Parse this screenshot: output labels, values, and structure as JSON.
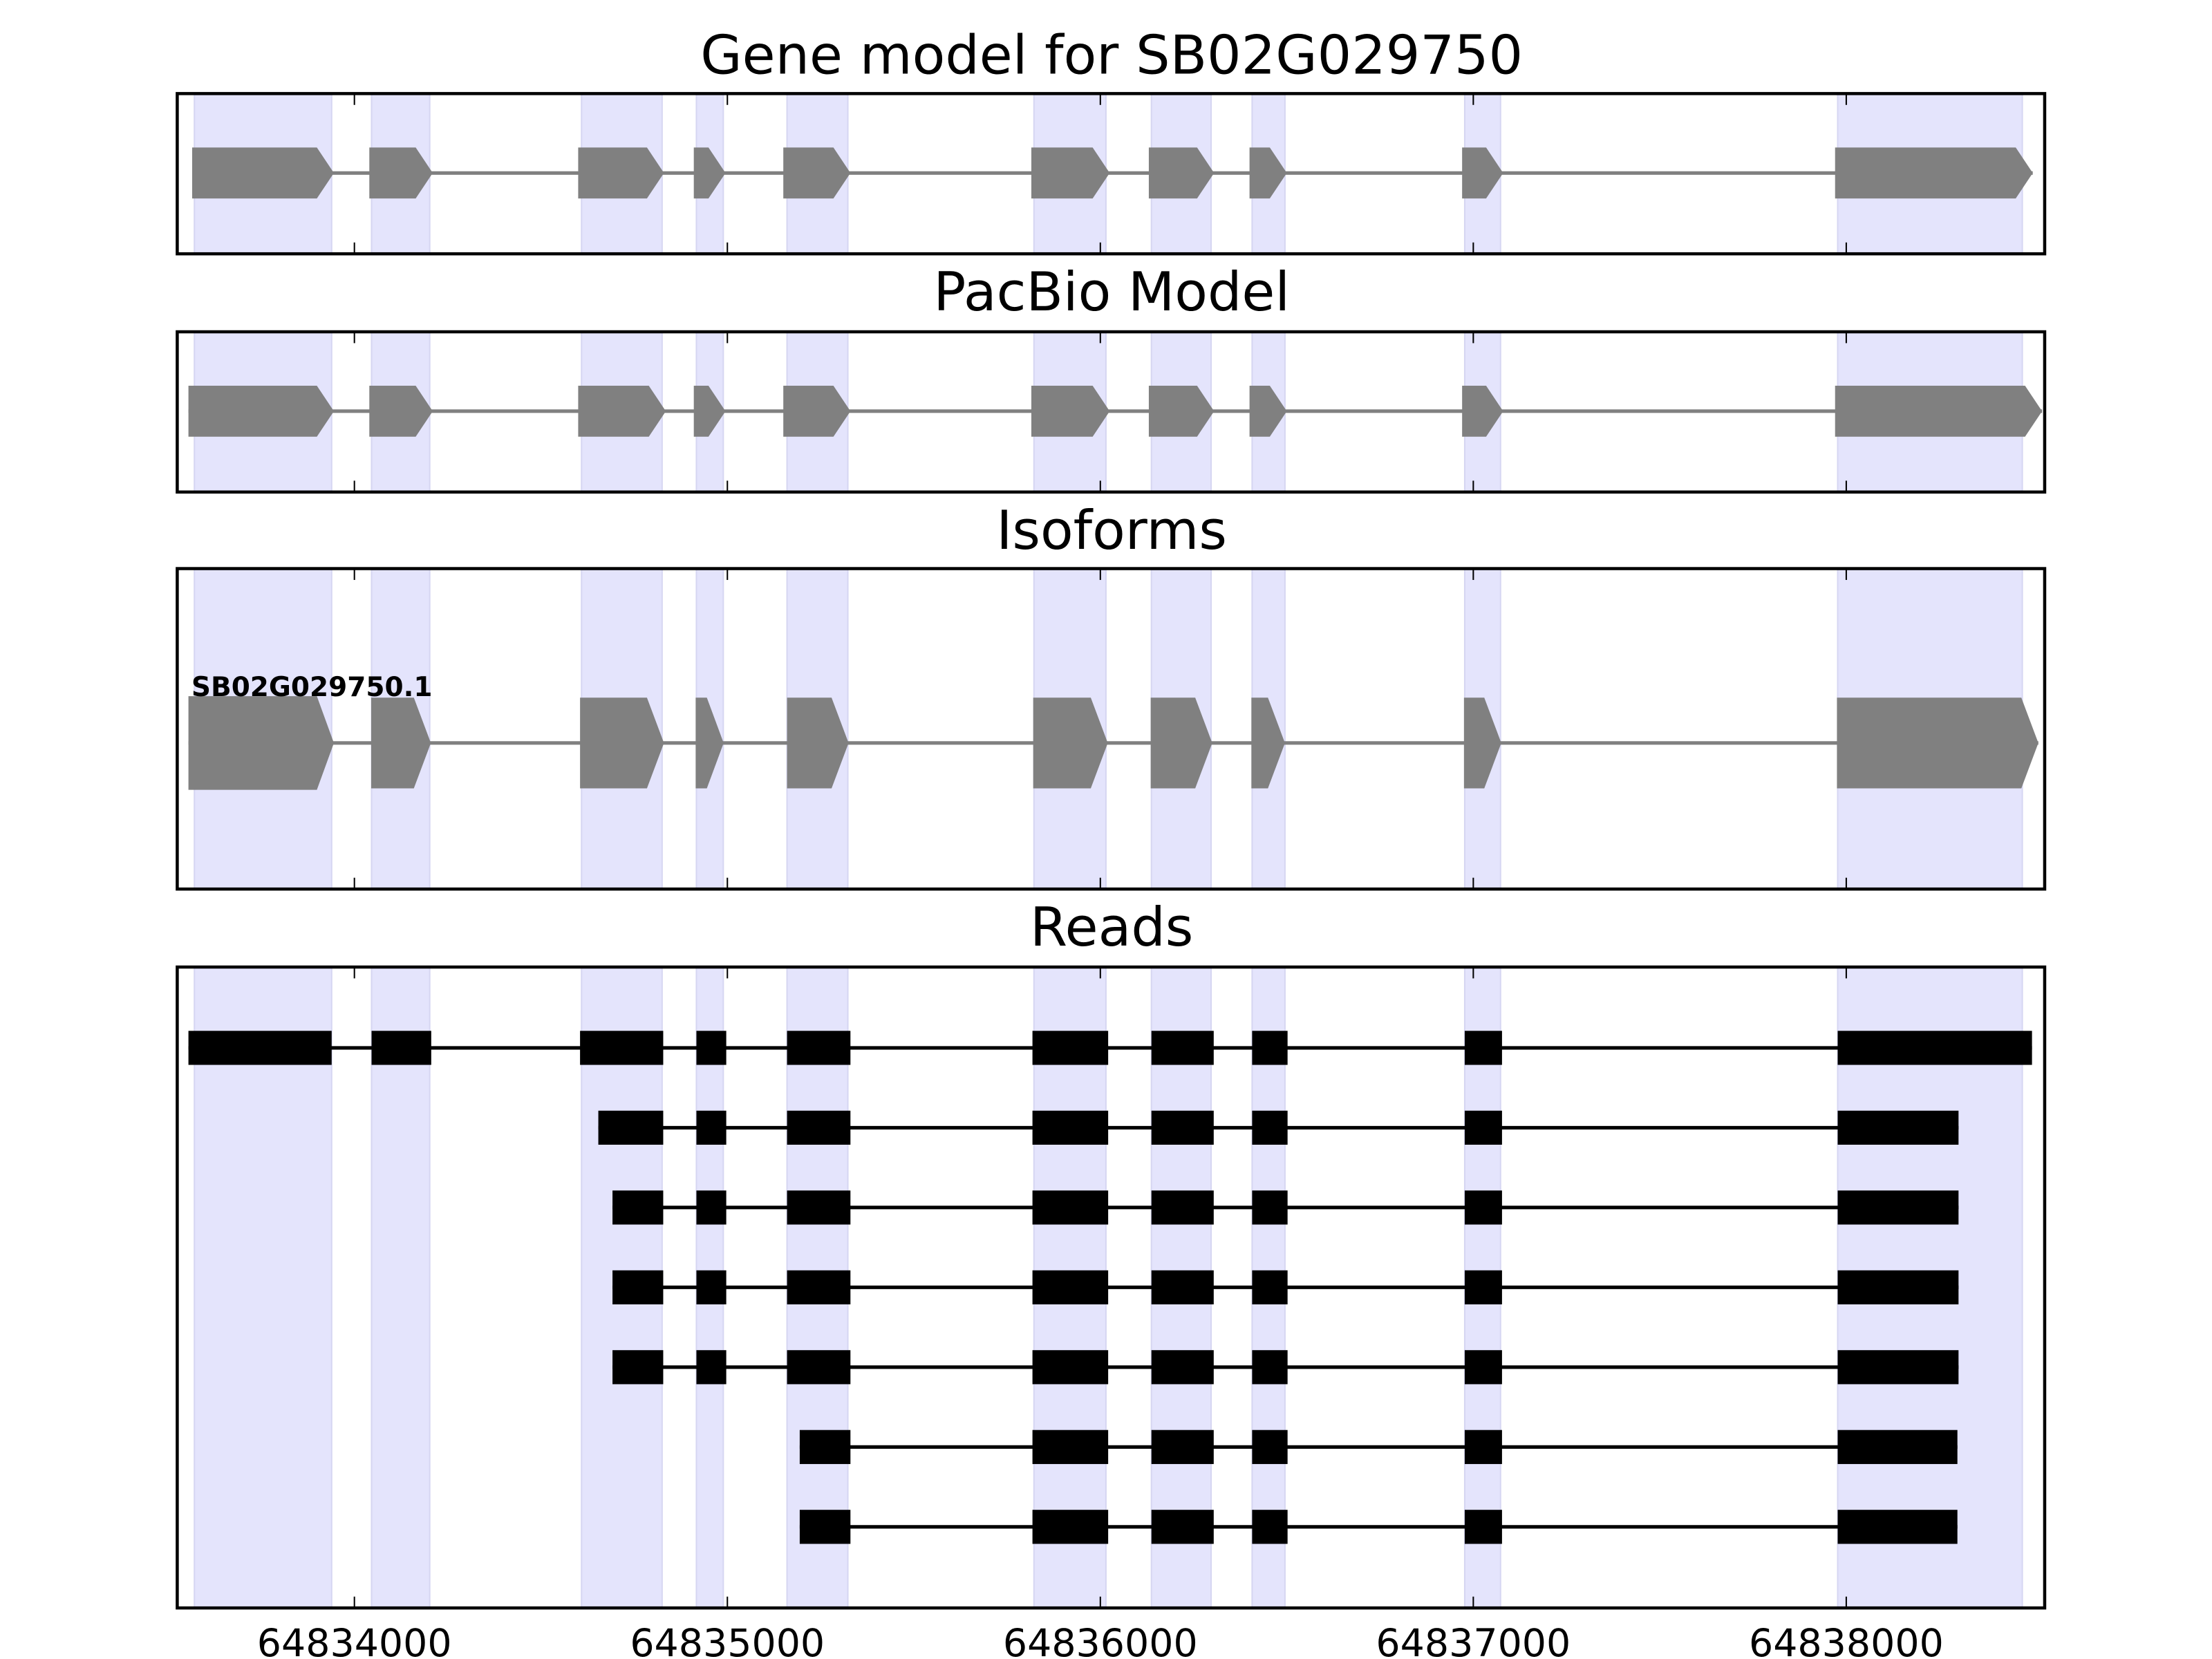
{
  "chart_data": {
    "type": "gene-track",
    "xlim": [
      64833525,
      64838532
    ],
    "x_ticks": [
      64834000,
      64835000,
      64836000,
      64837000,
      64838000
    ],
    "x_tick_labels": [
      "64834000",
      "64835000",
      "64836000",
      "64837000",
      "64838000"
    ],
    "shaded_exons": [
      [
        64833571,
        64833939
      ],
      [
        64834046,
        64834202
      ],
      [
        64834609,
        64834825
      ],
      [
        64834917,
        64834989
      ],
      [
        64835160,
        64835323
      ],
      [
        64835822,
        64836015
      ],
      [
        64836137,
        64836297
      ],
      [
        64836407,
        64836495
      ],
      [
        64836977,
        64837073
      ],
      [
        64837977,
        64838472
      ]
    ],
    "colors": {
      "shade": "#e4e4fc",
      "model": "#808080",
      "read": "#000000"
    },
    "panels": [
      {
        "title": "Gene model for SB02G029750",
        "exons": [
          [
            64833565,
            64833945
          ],
          [
            64834040,
            64834210
          ],
          [
            64834600,
            64834830
          ],
          [
            64834910,
            64834995
          ],
          [
            64835150,
            64835330
          ],
          [
            64835815,
            64836025
          ],
          [
            64836130,
            64836305
          ],
          [
            64836400,
            64836500
          ],
          [
            64836970,
            64837080
          ],
          [
            64837970,
            64838500
          ]
        ]
      },
      {
        "title": "PacBio Model",
        "exons": [
          [
            64833555,
            64833945
          ],
          [
            64834040,
            64834210
          ],
          [
            64834600,
            64834835
          ],
          [
            64834910,
            64834995
          ],
          [
            64835150,
            64835330
          ],
          [
            64835815,
            64836025
          ],
          [
            64836130,
            64836305
          ],
          [
            64836400,
            64836500
          ],
          [
            64836970,
            64837080
          ],
          [
            64837970,
            64838525
          ]
        ]
      },
      {
        "title": "Isoforms",
        "label": "SB02G029750.1",
        "exons": [
          [
            64833555,
            64833945
          ],
          [
            64834045,
            64834205
          ],
          [
            64834605,
            64834830
          ],
          [
            64834915,
            64834990
          ],
          [
            64835160,
            64835325
          ],
          [
            64835820,
            64836020
          ],
          [
            64836135,
            64836300
          ],
          [
            64836405,
            64836495
          ],
          [
            64836975,
            64837075
          ],
          [
            64837975,
            64838515
          ]
        ]
      }
    ],
    "reads_title": "Reads",
    "reads": [
      {
        "exons": [
          [
            64833555,
            64833939
          ],
          [
            64834046,
            64834206
          ],
          [
            64834605,
            64834828
          ],
          [
            64834917,
            64834997
          ],
          [
            64835160,
            64835330
          ],
          [
            64835818,
            64836021
          ],
          [
            64836137,
            64836304
          ],
          [
            64836407,
            64836502
          ],
          [
            64836977,
            64837077
          ],
          [
            64837977,
            64838498
          ]
        ]
      },
      {
        "exons": [
          [
            64834654,
            64834828
          ],
          [
            64834917,
            64834997
          ],
          [
            64835160,
            64835330
          ],
          [
            64835818,
            64836021
          ],
          [
            64836137,
            64836304
          ],
          [
            64836407,
            64836502
          ],
          [
            64836977,
            64837077
          ],
          [
            64837977,
            64838301
          ]
        ]
      },
      {
        "exons": [
          [
            64834692,
            64834828
          ],
          [
            64834917,
            64834997
          ],
          [
            64835160,
            64835330
          ],
          [
            64835818,
            64836021
          ],
          [
            64836137,
            64836304
          ],
          [
            64836407,
            64836502
          ],
          [
            64836977,
            64837077
          ],
          [
            64837977,
            64838301
          ]
        ]
      },
      {
        "exons": [
          [
            64834692,
            64834828
          ],
          [
            64834917,
            64834997
          ],
          [
            64835160,
            64835330
          ],
          [
            64835818,
            64836021
          ],
          [
            64836137,
            64836304
          ],
          [
            64836407,
            64836502
          ],
          [
            64836977,
            64837077
          ],
          [
            64837977,
            64838301
          ]
        ]
      },
      {
        "exons": [
          [
            64834692,
            64834828
          ],
          [
            64834917,
            64834997
          ],
          [
            64835160,
            64835330
          ],
          [
            64835818,
            64836021
          ],
          [
            64836137,
            64836304
          ],
          [
            64836407,
            64836502
          ],
          [
            64836977,
            64837077
          ],
          [
            64837977,
            64838301
          ]
        ]
      },
      {
        "exons": [
          [
            64835194,
            64835330
          ],
          [
            64835818,
            64836021
          ],
          [
            64836137,
            64836304
          ],
          [
            64836407,
            64836502
          ],
          [
            64836977,
            64837077
          ],
          [
            64837977,
            64838298
          ]
        ]
      },
      {
        "exons": [
          [
            64835194,
            64835330
          ],
          [
            64835818,
            64836021
          ],
          [
            64836137,
            64836304
          ],
          [
            64836407,
            64836502
          ],
          [
            64836977,
            64837077
          ],
          [
            64837977,
            64838298
          ]
        ]
      }
    ]
  }
}
